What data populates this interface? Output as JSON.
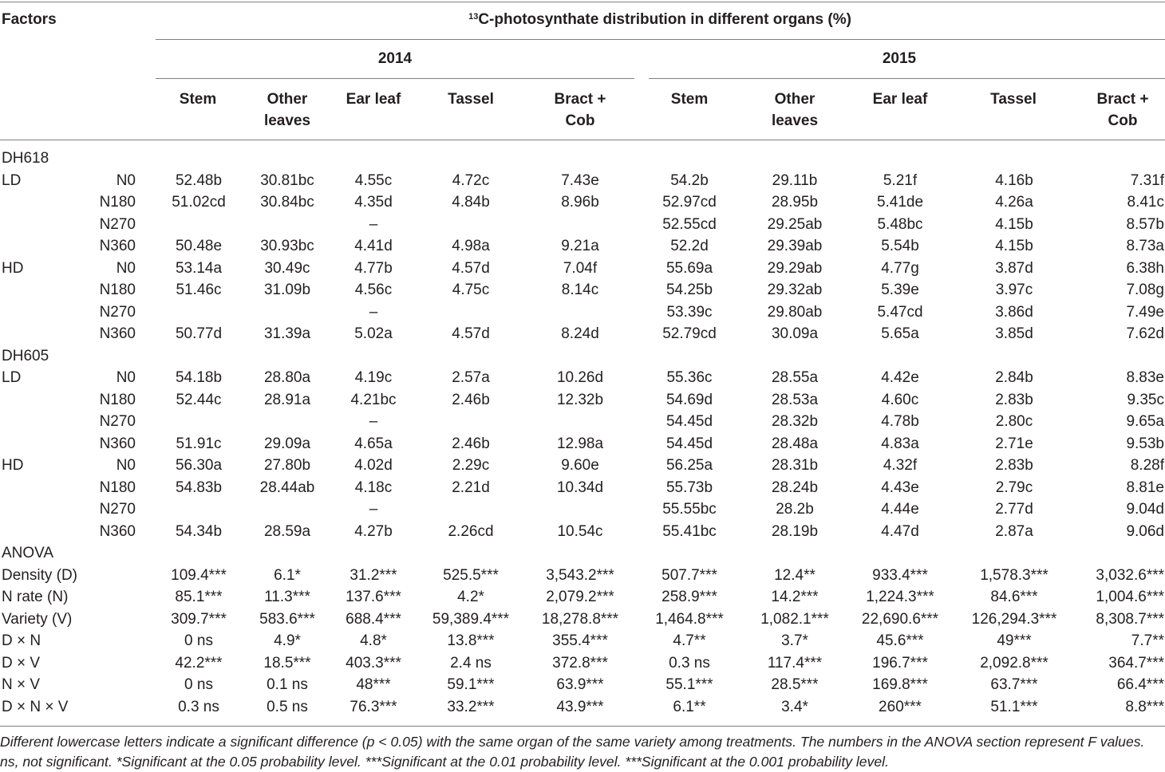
{
  "header": {
    "factors": "Factors",
    "caption_sup": "13",
    "caption_rest": "C-photosynthate distribution in different organs (%)",
    "years": [
      "2014",
      "2015"
    ],
    "columns_2014": [
      "Stem",
      "Other leaves",
      "Ear leaf",
      "Tassel",
      "Bract + Cob"
    ],
    "columns_2015": [
      "Stem",
      "Other leaves",
      "Ear leaf",
      "Tassel",
      "Bract + Cob"
    ]
  },
  "rows": [
    {
      "a": "DH618",
      "b": "",
      "v": [
        "",
        "",
        "",
        "",
        "",
        "",
        "",
        "",
        "",
        ""
      ]
    },
    {
      "a": "LD",
      "b": "N0",
      "v": [
        "52.48b",
        "30.81bc",
        "4.55c",
        "4.72c",
        "7.43e",
        "54.2b",
        "29.11b",
        "5.21f",
        "4.16b",
        "7.31f"
      ]
    },
    {
      "a": "",
      "b": "N180",
      "v": [
        "51.02cd",
        "30.84bc",
        "4.35d",
        "4.84b",
        "8.96b",
        "52.97cd",
        "28.95b",
        "5.41de",
        "4.26a",
        "8.41c"
      ]
    },
    {
      "a": "",
      "b": "N270",
      "v": [
        "",
        "",
        "–",
        "",
        "",
        "52.55cd",
        "29.25ab",
        "5.48bc",
        "4.15b",
        "8.57b"
      ]
    },
    {
      "a": "",
      "b": "N360",
      "v": [
        "50.48e",
        "30.93bc",
        "4.41d",
        "4.98a",
        "9.21a",
        "52.2d",
        "29.39ab",
        "5.54b",
        "4.15b",
        "8.73a"
      ]
    },
    {
      "a": "HD",
      "b": "N0",
      "v": [
        "53.14a",
        "30.49c",
        "4.77b",
        "4.57d",
        "7.04f",
        "55.69a",
        "29.29ab",
        "4.77g",
        "3.87d",
        "6.38h"
      ]
    },
    {
      "a": "",
      "b": "N180",
      "v": [
        "51.46c",
        "31.09b",
        "4.56c",
        "4.75c",
        "8.14c",
        "54.25b",
        "29.32ab",
        "5.39e",
        "3.97c",
        "7.08g"
      ]
    },
    {
      "a": "",
      "b": "N270",
      "v": [
        "",
        "",
        "–",
        "",
        "",
        "53.39c",
        "29.80ab",
        "5.47cd",
        "3.86d",
        "7.49e"
      ]
    },
    {
      "a": "",
      "b": "N360",
      "v": [
        "50.77d",
        "31.39a",
        "5.02a",
        "4.57d",
        "8.24d",
        "52.79cd",
        "30.09a",
        "5.65a",
        "3.85d",
        "7.62d"
      ]
    },
    {
      "a": "DH605",
      "b": "",
      "v": [
        "",
        "",
        "",
        "",
        "",
        "",
        "",
        "",
        "",
        ""
      ]
    },
    {
      "a": "LD",
      "b": "N0",
      "v": [
        "54.18b",
        "28.80a",
        "4.19c",
        "2.57a",
        "10.26d",
        "55.36c",
        "28.55a",
        "4.42e",
        "2.84b",
        "8.83e"
      ]
    },
    {
      "a": "",
      "b": "N180",
      "v": [
        "52.44c",
        "28.91a",
        "4.21bc",
        "2.46b",
        "12.32b",
        "54.69d",
        "28.53a",
        "4.60c",
        "2.83b",
        "9.35c"
      ]
    },
    {
      "a": "",
      "b": "N270",
      "v": [
        "",
        "",
        "–",
        "",
        "",
        "54.45d",
        "28.32b",
        "4.78b",
        "2.80c",
        "9.65a"
      ]
    },
    {
      "a": "",
      "b": "N360",
      "v": [
        "51.91c",
        "29.09a",
        "4.65a",
        "2.46b",
        "12.98a",
        "54.45d",
        "28.48a",
        "4.83a",
        "2.71e",
        "9.53b"
      ]
    },
    {
      "a": "HD",
      "b": "N0",
      "v": [
        "56.30a",
        "27.80b",
        "4.02d",
        "2.29c",
        "9.60e",
        "56.25a",
        "28.31b",
        "4.32f",
        "2.83b",
        "8.28f"
      ]
    },
    {
      "a": "",
      "b": "N180",
      "v": [
        "54.83b",
        "28.44ab",
        "4.18c",
        "2.21d",
        "10.34d",
        "55.73b",
        "28.24b",
        "4.43e",
        "2.79c",
        "8.81e"
      ]
    },
    {
      "a": "",
      "b": "N270",
      "v": [
        "",
        "",
        "–",
        "",
        "",
        "55.55bc",
        "28.2b",
        "4.44e",
        "2.77d",
        "9.04d"
      ]
    },
    {
      "a": "",
      "b": "N360",
      "v": [
        "54.34b",
        "28.59a",
        "4.27b",
        "2.26cd",
        "10.54c",
        "55.41bc",
        "28.19b",
        "4.47d",
        "2.87a",
        "9.06d"
      ]
    },
    {
      "a": "ANOVA",
      "b": "",
      "v": [
        "",
        "",
        "",
        "",
        "",
        "",
        "",
        "",
        "",
        ""
      ]
    },
    {
      "a": "Density (D)",
      "b": "",
      "v": [
        "109.4***",
        "6.1*",
        "31.2***",
        "525.5***",
        "3,543.2***",
        "507.7***",
        "12.4**",
        "933.4***",
        "1,578.3***",
        "3,032.6***"
      ]
    },
    {
      "a": "N rate (N)",
      "b": "",
      "v": [
        "85.1***",
        "11.3***",
        "137.6***",
        "4.2*",
        "2,079.2***",
        "258.9***",
        "14.2***",
        "1,224.3***",
        "84.6***",
        "1,004.6***"
      ]
    },
    {
      "a": "Variety (V)",
      "b": "",
      "v": [
        "309.7***",
        "583.6***",
        "688.4***",
        "59,389.4***",
        "18,278.8***",
        "1,464.8***",
        "1,082.1***",
        "22,690.6***",
        "126,294.3***",
        "8,308.7***"
      ]
    },
    {
      "a": "D × N",
      "b": "",
      "v": [
        "0 ns",
        "4.9*",
        "4.8*",
        "13.8***",
        "355.4***",
        "4.7**",
        "3.7*",
        "45.6***",
        "49***",
        "7.7**"
      ]
    },
    {
      "a": "D × V",
      "b": "",
      "v": [
        "42.2***",
        "18.5***",
        "403.3***",
        "2.4 ns",
        "372.8***",
        "0.3 ns",
        "117.4***",
        "196.7***",
        "2,092.8***",
        "364.7***"
      ]
    },
    {
      "a": "N × V",
      "b": "",
      "v": [
        "0 ns",
        "0.1 ns",
        "48***",
        "59.1***",
        "63.9***",
        "55.1***",
        "28.5***",
        "169.8***",
        "63.7***",
        "66.4***"
      ]
    },
    {
      "a": "D × N × V",
      "b": "",
      "v": [
        "0.3 ns",
        "0.5 ns",
        "76.3***",
        "33.2***",
        "43.9***",
        "6.1**",
        "3.4*",
        "260***",
        "51.1***",
        "8.8***"
      ]
    }
  ],
  "footnote": "Different lowercase letters indicate a significant difference (p < 0.05) with the same organ of the same variety among treatments. The numbers in the ANOVA section represent F values. ns, not significant. *Significant at the 0.05 probability level. ***Significant at the 0.01 probability level. ***Significant at the 0.001 probability level."
}
